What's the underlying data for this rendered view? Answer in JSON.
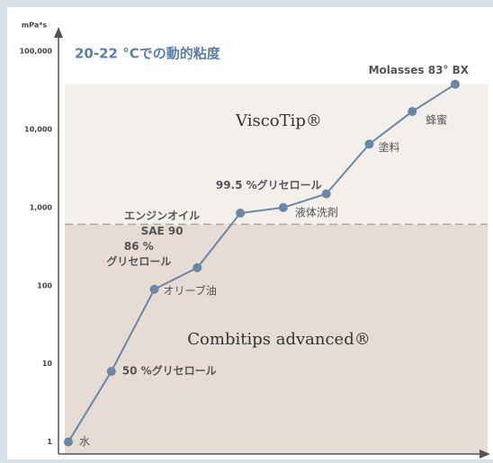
{
  "chart_data": {
    "type": "line",
    "title": "20-22 °Cでの動的粘度",
    "y_label": "mPa*s",
    "log_scale": true,
    "categories": [
      "水",
      "50 %グリセロール",
      "オリーブ油",
      "86 %\nグリセロール",
      "エンジンオイル\nSAE 90",
      "液体洗剤",
      "99.5 %グリセロール",
      "塗料",
      "蜂蜜",
      "Molasses 83° BX"
    ],
    "series": [
      {
        "color": "#6b87a8",
        "values": [
          1,
          8,
          90,
          170,
          850,
          1000,
          1500,
          6500,
          17000,
          38000
        ]
      }
    ],
    "ylim": [
      0.7,
      180000
    ],
    "yticks": [
      1,
      10,
      100,
      {
        "value": 1000,
        "label": "1,000"
      },
      {
        "value": 10000,
        "label": "10,000"
      },
      {
        "value": 100000,
        "label": "100,000"
      }
    ],
    "regions": [
      {
        "label": "ViscoTip®",
        "from": 600,
        "to": 38000,
        "color": "#f3f0ec"
      },
      {
        "label": "Combitips advanced®",
        "from": 0.7,
        "to": 600,
        "color": "#e6dcd3"
      }
    ]
  }
}
